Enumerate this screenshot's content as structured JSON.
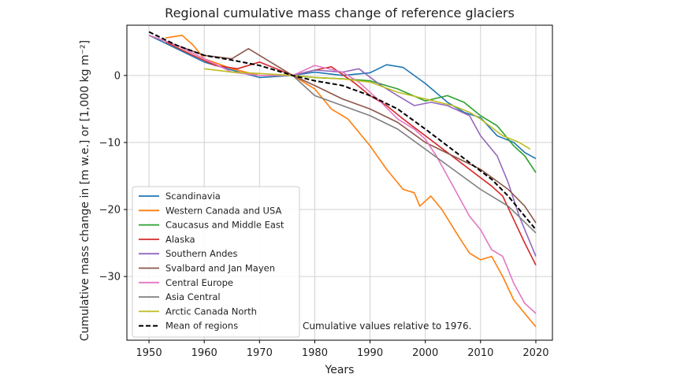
{
  "chart_data": {
    "type": "line",
    "title": "Regional cumulative mass change of reference glaciers",
    "xlabel": "Years",
    "ylabel": "Cumulative mass change in [m w.e.] or [1,000 kg m⁻²]",
    "xlim": [
      1946,
      2023
    ],
    "ylim": [
      -39.5,
      7.5
    ],
    "xticks": [
      1950,
      1960,
      1970,
      1980,
      1990,
      2000,
      2010,
      2020
    ],
    "yticks": [
      0,
      -10,
      -20,
      -30
    ],
    "grid": true,
    "legend_position": "lower-left",
    "annotation": "Cumulative values relative to 1976.",
    "series": [
      {
        "name": "Scandinavia",
        "color": "#1f77b4",
        "dash": false,
        "points": [
          [
            1950,
            6.0
          ],
          [
            1955,
            4.0
          ],
          [
            1960,
            2.0
          ],
          [
            1965,
            0.8
          ],
          [
            1970,
            -0.3
          ],
          [
            1976,
            0
          ],
          [
            1980,
            0.5
          ],
          [
            1985,
            0.0
          ],
          [
            1990,
            0.4
          ],
          [
            1993,
            1.6
          ],
          [
            1996,
            1.2
          ],
          [
            2000,
            -1.2
          ],
          [
            2004,
            -4.0
          ],
          [
            2007,
            -5.5
          ],
          [
            2010,
            -6.3
          ],
          [
            2013,
            -9.0
          ],
          [
            2016,
            -10.0
          ],
          [
            2018,
            -11.5
          ],
          [
            2020,
            -12.4
          ]
        ]
      },
      {
        "name": "Western Canada and USA",
        "color": "#ff7f0e",
        "dash": false,
        "points": [
          [
            1953,
            5.6
          ],
          [
            1956,
            6.0
          ],
          [
            1958,
            4.5
          ],
          [
            1960,
            2.5
          ],
          [
            1965,
            1.0
          ],
          [
            1970,
            0.0
          ],
          [
            1976,
            0
          ],
          [
            1980,
            -2.0
          ],
          [
            1983,
            -5.0
          ],
          [
            1986,
            -6.5
          ],
          [
            1990,
            -10.5
          ],
          [
            1993,
            -14.0
          ],
          [
            1996,
            -17.0
          ],
          [
            1998,
            -17.5
          ],
          [
            1999,
            -19.5
          ],
          [
            2001,
            -18.0
          ],
          [
            2003,
            -20.0
          ],
          [
            2006,
            -24.0
          ],
          [
            2008,
            -26.5
          ],
          [
            2010,
            -27.5
          ],
          [
            2012,
            -27.0
          ],
          [
            2014,
            -30.0
          ],
          [
            2016,
            -33.5
          ],
          [
            2018,
            -35.5
          ],
          [
            2020,
            -37.5
          ]
        ]
      },
      {
        "name": "Caucasus and Middle East",
        "color": "#2ca02c",
        "dash": false,
        "points": [
          [
            1976,
            0
          ],
          [
            1980,
            -0.3
          ],
          [
            1985,
            -0.5
          ],
          [
            1990,
            -0.8
          ],
          [
            1995,
            -2.0
          ],
          [
            2000,
            -3.8
          ],
          [
            2004,
            -3.0
          ],
          [
            2007,
            -4.0
          ],
          [
            2010,
            -6.0
          ],
          [
            2013,
            -7.5
          ],
          [
            2016,
            -10.5
          ],
          [
            2018,
            -12.0
          ],
          [
            2020,
            -14.5
          ]
        ]
      },
      {
        "name": "Alaska",
        "color": "#d62728",
        "dash": false,
        "points": [
          [
            1953,
            5.0
          ],
          [
            1958,
            3.0
          ],
          [
            1962,
            1.5
          ],
          [
            1966,
            1.0
          ],
          [
            1970,
            2.0
          ],
          [
            1973,
            1.0
          ],
          [
            1976,
            0
          ],
          [
            1980,
            0.8
          ],
          [
            1983,
            1.3
          ],
          [
            1987,
            -1.0
          ],
          [
            1990,
            -3.0
          ],
          [
            1993,
            -4.5
          ],
          [
            1996,
            -6.5
          ],
          [
            2000,
            -9.0
          ],
          [
            2004,
            -11.5
          ],
          [
            2008,
            -14.0
          ],
          [
            2012,
            -16.5
          ],
          [
            2014,
            -18.0
          ],
          [
            2016,
            -21.5
          ],
          [
            2018,
            -25.0
          ],
          [
            2020,
            -28.3
          ]
        ]
      },
      {
        "name": "Southern Andes",
        "color": "#9467bd",
        "dash": false,
        "points": [
          [
            1976,
            0
          ],
          [
            1980,
            0.8
          ],
          [
            1985,
            0.5
          ],
          [
            1988,
            1.0
          ],
          [
            1992,
            -1.5
          ],
          [
            1995,
            -3.0
          ],
          [
            1998,
            -4.5
          ],
          [
            2001,
            -4.0
          ],
          [
            2004,
            -4.5
          ],
          [
            2008,
            -6.0
          ],
          [
            2010,
            -9.0
          ],
          [
            2013,
            -12.0
          ],
          [
            2015,
            -16.0
          ],
          [
            2017,
            -21.0
          ],
          [
            2018,
            -23.0
          ],
          [
            2020,
            -27.0
          ]
        ]
      },
      {
        "name": "Svalbard and Jan Mayen",
        "color": "#8c564b",
        "dash": false,
        "points": [
          [
            1950,
            6.0
          ],
          [
            1955,
            4.5
          ],
          [
            1960,
            3.0
          ],
          [
            1965,
            2.5
          ],
          [
            1968,
            4.0
          ],
          [
            1972,
            2.0
          ],
          [
            1976,
            0
          ],
          [
            1980,
            -1.5
          ],
          [
            1985,
            -3.5
          ],
          [
            1990,
            -5.0
          ],
          [
            1995,
            -7.0
          ],
          [
            2000,
            -10.0
          ],
          [
            2005,
            -12.0
          ],
          [
            2010,
            -14.0
          ],
          [
            2015,
            -17.0
          ],
          [
            2018,
            -19.5
          ],
          [
            2020,
            -22.0
          ]
        ]
      },
      {
        "name": "Central Europe",
        "color": "#e377c2",
        "dash": false,
        "points": [
          [
            1950,
            6.0
          ],
          [
            1955,
            4.5
          ],
          [
            1960,
            2.5
          ],
          [
            1965,
            0.5
          ],
          [
            1970,
            0.0
          ],
          [
            1976,
            0
          ],
          [
            1980,
            1.5
          ],
          [
            1985,
            0.5
          ],
          [
            1988,
            -1.0
          ],
          [
            1992,
            -4.0
          ],
          [
            1995,
            -6.5
          ],
          [
            1998,
            -8.0
          ],
          [
            2000,
            -9.5
          ],
          [
            2002,
            -12.0
          ],
          [
            2004,
            -15.0
          ],
          [
            2006,
            -18.0
          ],
          [
            2008,
            -21.0
          ],
          [
            2010,
            -23.0
          ],
          [
            2012,
            -26.0
          ],
          [
            2014,
            -27.0
          ],
          [
            2016,
            -31.0
          ],
          [
            2018,
            -34.0
          ],
          [
            2020,
            -35.5
          ]
        ]
      },
      {
        "name": "Asia Central",
        "color": "#7f7f7f",
        "dash": false,
        "points": [
          [
            1976,
            0
          ],
          [
            1980,
            -3.0
          ],
          [
            1985,
            -4.5
          ],
          [
            1990,
            -6.0
          ],
          [
            1995,
            -8.0
          ],
          [
            2000,
            -11.0
          ],
          [
            2005,
            -14.0
          ],
          [
            2010,
            -17.0
          ],
          [
            2015,
            -19.5
          ],
          [
            2020,
            -23.5
          ]
        ]
      },
      {
        "name": "Arctic Canada North",
        "color": "#bcbd22",
        "dash": false,
        "points": [
          [
            1960,
            1.0
          ],
          [
            1965,
            0.5
          ],
          [
            1970,
            0.3
          ],
          [
            1976,
            0
          ],
          [
            1980,
            -0.3
          ],
          [
            1985,
            -0.5
          ],
          [
            1990,
            -1.0
          ],
          [
            1995,
            -2.5
          ],
          [
            2000,
            -3.5
          ],
          [
            2005,
            -4.5
          ],
          [
            2008,
            -5.5
          ],
          [
            2010,
            -6.5
          ],
          [
            2014,
            -9.0
          ],
          [
            2017,
            -10.0
          ],
          [
            2019,
            -11.0
          ]
        ]
      },
      {
        "name": "Mean of regions",
        "color": "#000000",
        "dash": true,
        "points": [
          [
            1950,
            6.5
          ],
          [
            1955,
            4.5
          ],
          [
            1960,
            3.0
          ],
          [
            1965,
            2.3
          ],
          [
            1970,
            1.5
          ],
          [
            1976,
            0
          ],
          [
            1980,
            -0.8
          ],
          [
            1985,
            -1.5
          ],
          [
            1990,
            -3.0
          ],
          [
            1995,
            -5.0
          ],
          [
            2000,
            -8.0
          ],
          [
            2004,
            -10.5
          ],
          [
            2008,
            -13.0
          ],
          [
            2012,
            -15.5
          ],
          [
            2015,
            -18.0
          ],
          [
            2018,
            -21.0
          ],
          [
            2020,
            -23.0
          ]
        ]
      }
    ]
  }
}
